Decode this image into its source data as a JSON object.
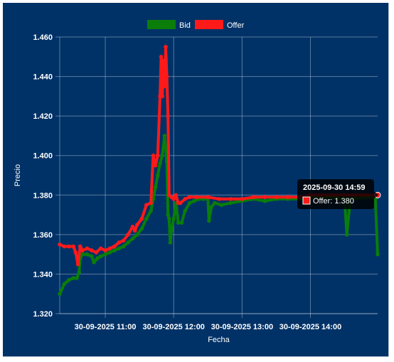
{
  "chart_data": {
    "type": "line",
    "xlabel": "Fecha",
    "ylabel": "Precio",
    "ylim": [
      1.32,
      1.46
    ],
    "y_ticks": [
      "1.320",
      "1.340",
      "1.360",
      "1.380",
      "1.400",
      "1.420",
      "1.440",
      "1.460"
    ],
    "x_tick_labels": [
      "30-09-2025 11:00",
      "30-09-2025 12:00",
      "30-09-2025 13:00",
      "30-09-2025 14:00"
    ],
    "x_range": [
      "2025-09-30 10:20",
      "2025-09-30 14:59"
    ],
    "grid": true,
    "legend_position": "top",
    "series": [
      {
        "name": "Bid",
        "color": "#0a7d0a",
        "points": [
          [
            "2025-09-30 10:20",
            1.33
          ],
          [
            "2025-09-30 10:24",
            1.335
          ],
          [
            "2025-09-30 10:28",
            1.337
          ],
          [
            "2025-09-30 10:32",
            1.338
          ],
          [
            "2025-09-30 10:35",
            1.338
          ],
          [
            "2025-09-30 10:37",
            1.341
          ],
          [
            "2025-09-30 10:38",
            1.348
          ],
          [
            "2025-09-30 10:40",
            1.35
          ],
          [
            "2025-09-30 10:44",
            1.35
          ],
          [
            "2025-09-30 10:48",
            1.349
          ],
          [
            "2025-09-30 10:50",
            1.346
          ],
          [
            "2025-09-30 10:53",
            1.348
          ],
          [
            "2025-09-30 10:56",
            1.349
          ],
          [
            "2025-09-30 11:00",
            1.35
          ],
          [
            "2025-09-30 11:04",
            1.351
          ],
          [
            "2025-09-30 11:08",
            1.352
          ],
          [
            "2025-09-30 11:12",
            1.353
          ],
          [
            "2025-09-30 11:16",
            1.354
          ],
          [
            "2025-09-30 11:20",
            1.356
          ],
          [
            "2025-09-30 11:24",
            1.358
          ],
          [
            "2025-09-30 11:28",
            1.36
          ],
          [
            "2025-09-30 11:32",
            1.363
          ],
          [
            "2025-09-30 11:36",
            1.368
          ],
          [
            "2025-09-30 11:40",
            1.372
          ],
          [
            "2025-09-30 11:42",
            1.378
          ],
          [
            "2025-09-30 11:44",
            1.384
          ],
          [
            "2025-09-30 11:46",
            1.39
          ],
          [
            "2025-09-30 11:48",
            1.396
          ],
          [
            "2025-09-30 11:50",
            1.4
          ],
          [
            "2025-09-30 11:52",
            1.41
          ],
          [
            "2025-09-30 11:54",
            1.397
          ],
          [
            "2025-09-30 11:55",
            1.37
          ],
          [
            "2025-09-30 11:56",
            1.368
          ],
          [
            "2025-09-30 11:57",
            1.356
          ],
          [
            "2025-09-30 11:58",
            1.362
          ],
          [
            "2025-09-30 12:00",
            1.368
          ],
          [
            "2025-09-30 12:02",
            1.376
          ],
          [
            "2025-09-30 12:04",
            1.366
          ],
          [
            "2025-09-30 12:07",
            1.366
          ],
          [
            "2025-09-30 12:10",
            1.372
          ],
          [
            "2025-09-30 12:14",
            1.376
          ],
          [
            "2025-09-30 12:18",
            1.377
          ],
          [
            "2025-09-30 12:22",
            1.378
          ],
          [
            "2025-09-30 12:26",
            1.378
          ],
          [
            "2025-09-30 12:30",
            1.378
          ],
          [
            "2025-09-30 12:31",
            1.367
          ],
          [
            "2025-09-30 12:33",
            1.374
          ],
          [
            "2025-09-30 12:36",
            1.376
          ],
          [
            "2025-09-30 12:42",
            1.375
          ],
          [
            "2025-09-30 12:50",
            1.376
          ],
          [
            "2025-09-30 13:00",
            1.377
          ],
          [
            "2025-09-30 13:10",
            1.378
          ],
          [
            "2025-09-30 13:20",
            1.377
          ],
          [
            "2025-09-30 13:30",
            1.378
          ],
          [
            "2025-09-30 13:40",
            1.378
          ],
          [
            "2025-09-30 13:50",
            1.378
          ],
          [
            "2025-09-30 14:00",
            1.379
          ],
          [
            "2025-09-30 14:10",
            1.379
          ],
          [
            "2025-09-30 14:20",
            1.379
          ],
          [
            "2025-09-30 14:30",
            1.378
          ],
          [
            "2025-09-30 14:32",
            1.36
          ],
          [
            "2025-09-30 14:35",
            1.378
          ],
          [
            "2025-09-30 14:50",
            1.379
          ],
          [
            "2025-09-30 14:55",
            1.379
          ],
          [
            "2025-09-30 14:57",
            1.378
          ],
          [
            "2025-09-30 14:59",
            1.35
          ]
        ]
      },
      {
        "name": "Offer",
        "color": "#ff1a1a",
        "points": [
          [
            "2025-09-30 10:20",
            1.355
          ],
          [
            "2025-09-30 10:24",
            1.354
          ],
          [
            "2025-09-30 10:28",
            1.354
          ],
          [
            "2025-09-30 10:32",
            1.354
          ],
          [
            "2025-09-30 10:34",
            1.351
          ],
          [
            "2025-09-30 10:36",
            1.345
          ],
          [
            "2025-09-30 10:38",
            1.354
          ],
          [
            "2025-09-30 10:40",
            1.352
          ],
          [
            "2025-09-30 10:44",
            1.353
          ],
          [
            "2025-09-30 10:48",
            1.352
          ],
          [
            "2025-09-30 10:52",
            1.351
          ],
          [
            "2025-09-30 10:56",
            1.353
          ],
          [
            "2025-09-30 11:00",
            1.352
          ],
          [
            "2025-09-30 11:04",
            1.353
          ],
          [
            "2025-09-30 11:08",
            1.354
          ],
          [
            "2025-09-30 11:12",
            1.356
          ],
          [
            "2025-09-30 11:16",
            1.357
          ],
          [
            "2025-09-30 11:20",
            1.36
          ],
          [
            "2025-09-30 11:24",
            1.364
          ],
          [
            "2025-09-30 11:26",
            1.362
          ],
          [
            "2025-09-30 11:28",
            1.365
          ],
          [
            "2025-09-30 11:32",
            1.368
          ],
          [
            "2025-09-30 11:36",
            1.375
          ],
          [
            "2025-09-30 11:40",
            1.376
          ],
          [
            "2025-09-30 11:42",
            1.4
          ],
          [
            "2025-09-30 11:44",
            1.395
          ],
          [
            "2025-09-30 11:46",
            1.4
          ],
          [
            "2025-09-30 11:48",
            1.43
          ],
          [
            "2025-09-30 11:49",
            1.45
          ],
          [
            "2025-09-30 11:50",
            1.43
          ],
          [
            "2025-09-30 11:51",
            1.448
          ],
          [
            "2025-09-30 11:52",
            1.435
          ],
          [
            "2025-09-30 11:53",
            1.455
          ],
          [
            "2025-09-30 11:54",
            1.44
          ],
          [
            "2025-09-30 11:55",
            1.42
          ],
          [
            "2025-09-30 11:56",
            1.38
          ],
          [
            "2025-09-30 11:58",
            1.379
          ],
          [
            "2025-09-30 12:00",
            1.378
          ],
          [
            "2025-09-30 12:02",
            1.38
          ],
          [
            "2025-09-30 12:04",
            1.376
          ],
          [
            "2025-09-30 12:06",
            1.376
          ],
          [
            "2025-09-30 12:10",
            1.378
          ],
          [
            "2025-09-30 12:14",
            1.379
          ],
          [
            "2025-09-30 12:20",
            1.379
          ],
          [
            "2025-09-30 12:30",
            1.379
          ],
          [
            "2025-09-30 12:40",
            1.378
          ],
          [
            "2025-09-30 12:50",
            1.378
          ],
          [
            "2025-09-30 13:00",
            1.378
          ],
          [
            "2025-09-30 13:10",
            1.379
          ],
          [
            "2025-09-30 13:20",
            1.379
          ],
          [
            "2025-09-30 13:30",
            1.379
          ],
          [
            "2025-09-30 13:40",
            1.379
          ],
          [
            "2025-09-30 13:50",
            1.379
          ],
          [
            "2025-09-30 14:00",
            1.38
          ],
          [
            "2025-09-30 14:10",
            1.38
          ],
          [
            "2025-09-30 14:20",
            1.38
          ],
          [
            "2025-09-30 14:30",
            1.38
          ],
          [
            "2025-09-30 14:40",
            1.38
          ],
          [
            "2025-09-30 14:50",
            1.38
          ],
          [
            "2025-09-30 14:59",
            1.38
          ]
        ]
      }
    ],
    "tooltip": {
      "title": "2025-09-30 14:59",
      "series": "Offer",
      "label": "Offer: 1.380",
      "x": "2025-09-30 14:59",
      "y": 1.38,
      "color": "#ff1a1a"
    }
  }
}
